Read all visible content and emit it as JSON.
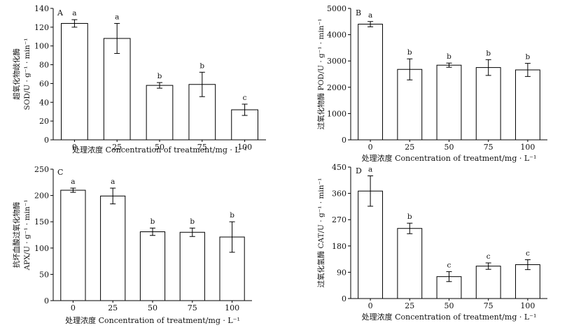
{
  "chart_data": [
    {
      "type": "bar",
      "panel": "A",
      "ylabel": [
        "超氧化物歧化酶",
        "SOD/U · g⁻¹ · min⁻¹"
      ],
      "xlabel": "处理浓度 Concentration of treatment/mg · L⁻¹",
      "categories": [
        "0",
        "25",
        "50",
        "75",
        "100"
      ],
      "values": [
        124,
        108,
        58,
        59,
        32
      ],
      "errors": [
        4,
        16,
        3,
        13,
        6
      ],
      "significance": [
        "a",
        "a",
        "b",
        "b",
        "c"
      ],
      "ylim": [
        0,
        140
      ],
      "yticks": [
        "0",
        "20",
        "40",
        "60",
        "80",
        "100",
        "120",
        "140"
      ]
    },
    {
      "type": "bar",
      "panel": "B",
      "ylabel": [
        "过氧化物酶 POD/U · g⁻¹ · min⁻¹"
      ],
      "xlabel": "处理浓度 Concentration of treatment/mg · L⁻¹",
      "categories": [
        "0",
        "25",
        "50",
        "75",
        "100"
      ],
      "values": [
        4400,
        2680,
        2840,
        2750,
        2660
      ],
      "errors": [
        100,
        400,
        80,
        300,
        250
      ],
      "significance": [
        "a",
        "b",
        "b",
        "b",
        "b"
      ],
      "ylim": [
        0,
        5000
      ],
      "yticks": [
        "0",
        "1000",
        "2000",
        "3000",
        "4000",
        "5000"
      ]
    },
    {
      "type": "bar",
      "panel": "C",
      "ylabel": [
        "抗坏血酸过氧化物酶",
        "APX/U · g⁻¹ · min⁻¹"
      ],
      "xlabel": "处理浓度 Concentration of treatment/mg · L⁻¹",
      "categories": [
        "0",
        "25",
        "50",
        "75",
        "100"
      ],
      "values": [
        210,
        199,
        131,
        130,
        121
      ],
      "errors": [
        4,
        15,
        7,
        8,
        29
      ],
      "significance": [
        "a",
        "a",
        "b",
        "b",
        "b"
      ],
      "ylim": [
        0,
        250
      ],
      "yticks": [
        "0",
        "50",
        "100",
        "150",
        "200",
        "250"
      ]
    },
    {
      "type": "bar",
      "panel": "D",
      "ylabel": [
        "过氧化氢酶 CAT/U · g⁻¹ · min⁻¹"
      ],
      "xlabel": "处理浓度 Concentration of treatment/mg · L⁻¹",
      "categories": [
        "0",
        "25",
        "50",
        "75",
        "100"
      ],
      "values": [
        368,
        240,
        75,
        111,
        116
      ],
      "errors": [
        52,
        18,
        17,
        11,
        17
      ],
      "significance": [
        "a",
        "b",
        "c",
        "c",
        "c"
      ],
      "ylim": [
        0,
        450
      ],
      "yticks": [
        "0",
        "90",
        "180",
        "270",
        "360",
        "450"
      ]
    }
  ]
}
